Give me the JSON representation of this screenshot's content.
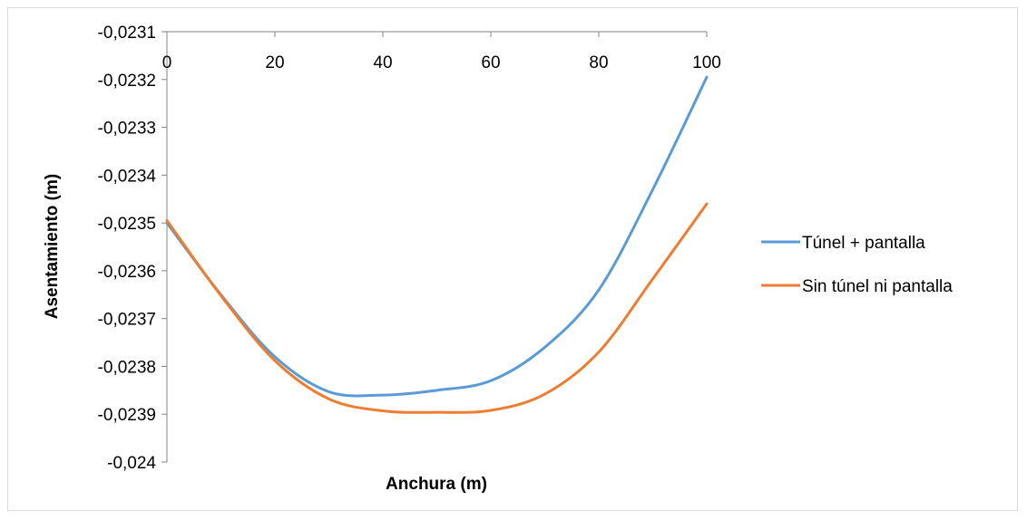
{
  "chart_data": {
    "type": "line",
    "xlabel": "Anchura (m)",
    "ylabel": "Asentamiento (m)",
    "xlim": [
      0,
      100
    ],
    "ylim": [
      -0.024,
      -0.0231
    ],
    "x_ticks": [
      "0",
      "20",
      "40",
      "60",
      "80",
      "100"
    ],
    "x_tick_values": [
      0,
      20,
      40,
      60,
      80,
      100
    ],
    "y_ticks": [
      "-0,0231",
      "-0,0232",
      "-0,0233",
      "-0,0234",
      "-0,0235",
      "-0,0236",
      "-0,0237",
      "-0,0238",
      "-0,0239",
      "-0,024"
    ],
    "y_tick_values": [
      -0.0231,
      -0.0232,
      -0.0233,
      -0.0234,
      -0.0235,
      -0.0236,
      -0.0237,
      -0.0238,
      -0.0239,
      -0.024
    ],
    "grid": false,
    "legend_position": "right",
    "series": [
      {
        "name": "Túnel + pantalla",
        "color": "#5b9bd5",
        "x": [
          0,
          10,
          20,
          30,
          40,
          50,
          60,
          70,
          80,
          90,
          100
        ],
        "y": [
          -0.0235,
          -0.02365,
          -0.02378,
          -0.023853,
          -0.02386,
          -0.02385,
          -0.02383,
          -0.02376,
          -0.02364,
          -0.02343,
          -0.023195
        ]
      },
      {
        "name": "Sin túnel ni pantalla",
        "color": "#ed7d31",
        "x": [
          0,
          10,
          20,
          30,
          40,
          50,
          60,
          70,
          80,
          90,
          100
        ],
        "y": [
          -0.023495,
          -0.023652,
          -0.023788,
          -0.023868,
          -0.023893,
          -0.023896,
          -0.023892,
          -0.023858,
          -0.02377,
          -0.023617,
          -0.02346
        ]
      }
    ]
  }
}
